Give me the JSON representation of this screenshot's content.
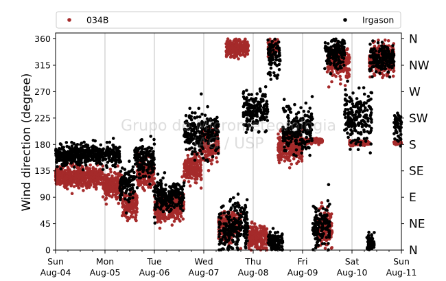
{
  "chart_data": {
    "type": "scatter",
    "title": "",
    "ylabel": "Wind direction (degree)",
    "xlabel": "",
    "ylim": [
      0,
      370
    ],
    "yticks": [
      0,
      45,
      90,
      135,
      180,
      225,
      270,
      315,
      360
    ],
    "xlim_days": [
      0,
      7
    ],
    "xticks": [
      {
        "day": "Sun",
        "date": "Aug-04"
      },
      {
        "day": "Mon",
        "date": "Aug-05"
      },
      {
        "day": "Tue",
        "date": "Aug-06"
      },
      {
        "day": "Wed",
        "date": "Aug-07"
      },
      {
        "day": "Thu",
        "date": "Aug-08"
      },
      {
        "day": "Fri",
        "date": "Aug-09"
      },
      {
        "day": "Sat",
        "date": "Aug-10"
      },
      {
        "day": "Sun",
        "date": "Aug-11"
      }
    ],
    "right_axis_labels": [
      "N",
      "NE",
      "E",
      "SE",
      "S",
      "SW",
      "W",
      "NW",
      "N"
    ],
    "watermark": [
      "Grupo de Micrometeorologia",
      "IAG / USP"
    ],
    "grid": "vertical-at-day-ticks",
    "legend_placement": "top, outside plot, two columns",
    "series": [
      {
        "name": "034B",
        "color": "#a52a2a",
        "segments": [
          {
            "t": [
              0.0,
              0.95
            ],
            "center": 125,
            "spread": 14
          },
          {
            "t": [
              0.95,
              1.35
            ],
            "center": 110,
            "spread": 18
          },
          {
            "t": [
              1.35,
              1.65
            ],
            "center": 75,
            "spread": 18
          },
          {
            "t": [
              1.65,
              2.0
            ],
            "center": 130,
            "spread": 20
          },
          {
            "t": [
              2.0,
              2.6
            ],
            "center": 72,
            "spread": 18
          },
          {
            "t": [
              2.6,
              2.95
            ],
            "center": 140,
            "spread": 20
          },
          {
            "t": [
              2.95,
              3.3
            ],
            "center": 180,
            "spread": 25
          },
          {
            "t": [
              3.3,
              3.75
            ],
            "center": 40,
            "spread": 22
          },
          {
            "t": [
              3.45,
              3.9
            ],
            "center": 345,
            "spread": 12
          },
          {
            "t": [
              3.9,
              4.3
            ],
            "center": 20,
            "spread": 20
          },
          {
            "t": [
              4.3,
              4.5
            ],
            "center": 345,
            "spread": 12
          },
          {
            "t": [
              4.5,
              5.0
            ],
            "center": 175,
            "spread": 20
          },
          {
            "t": [
              5.0,
              5.4
            ],
            "center": 186,
            "spread": 3
          },
          {
            "t": [
              5.3,
              5.6
            ],
            "center": 40,
            "spread": 25
          },
          {
            "t": [
              5.5,
              5.95
            ],
            "center": 320,
            "spread": 22
          },
          {
            "t": [
              5.95,
              6.35
            ],
            "center": 182,
            "spread": 3
          },
          {
            "t": [
              6.35,
              6.85
            ],
            "center": 325,
            "spread": 20
          },
          {
            "t": [
              6.85,
              7.0
            ],
            "center": 183,
            "spread": 2
          }
        ]
      },
      {
        "name": "Irgason",
        "color": "#000000",
        "segments": [
          {
            "t": [
              0.0,
              1.3
            ],
            "center": 163,
            "spread": 15
          },
          {
            "t": [
              1.3,
              1.6
            ],
            "center": 115,
            "spread": 25
          },
          {
            "t": [
              1.6,
              2.0
            ],
            "center": 155,
            "spread": 25
          },
          {
            "t": [
              2.0,
              2.6
            ],
            "center": 92,
            "spread": 22
          },
          {
            "t": [
              2.6,
              3.3
            ],
            "center": 200,
            "spread": 30
          },
          {
            "t": [
              3.3,
              3.9
            ],
            "center": 40,
            "spread": 35
          },
          {
            "t": [
              3.8,
              4.3
            ],
            "center": 240,
            "spread": 28
          },
          {
            "t": [
              4.3,
              4.55
            ],
            "center": 330,
            "spread": 25
          },
          {
            "t": [
              4.3,
              4.6
            ],
            "center": 15,
            "spread": 15
          },
          {
            "t": [
              4.6,
              5.2
            ],
            "center": 205,
            "spread": 30
          },
          {
            "t": [
              5.2,
              5.55
            ],
            "center": 40,
            "spread": 30
          },
          {
            "t": [
              5.45,
              5.85
            ],
            "center": 335,
            "spread": 22
          },
          {
            "t": [
              5.85,
              6.4
            ],
            "center": 225,
            "spread": 35
          },
          {
            "t": [
              6.3,
              6.45
            ],
            "center": 12,
            "spread": 12
          },
          {
            "t": [
              6.35,
              6.85
            ],
            "center": 325,
            "spread": 20
          },
          {
            "t": [
              6.85,
              7.0
            ],
            "center": 215,
            "spread": 25
          }
        ]
      }
    ]
  }
}
